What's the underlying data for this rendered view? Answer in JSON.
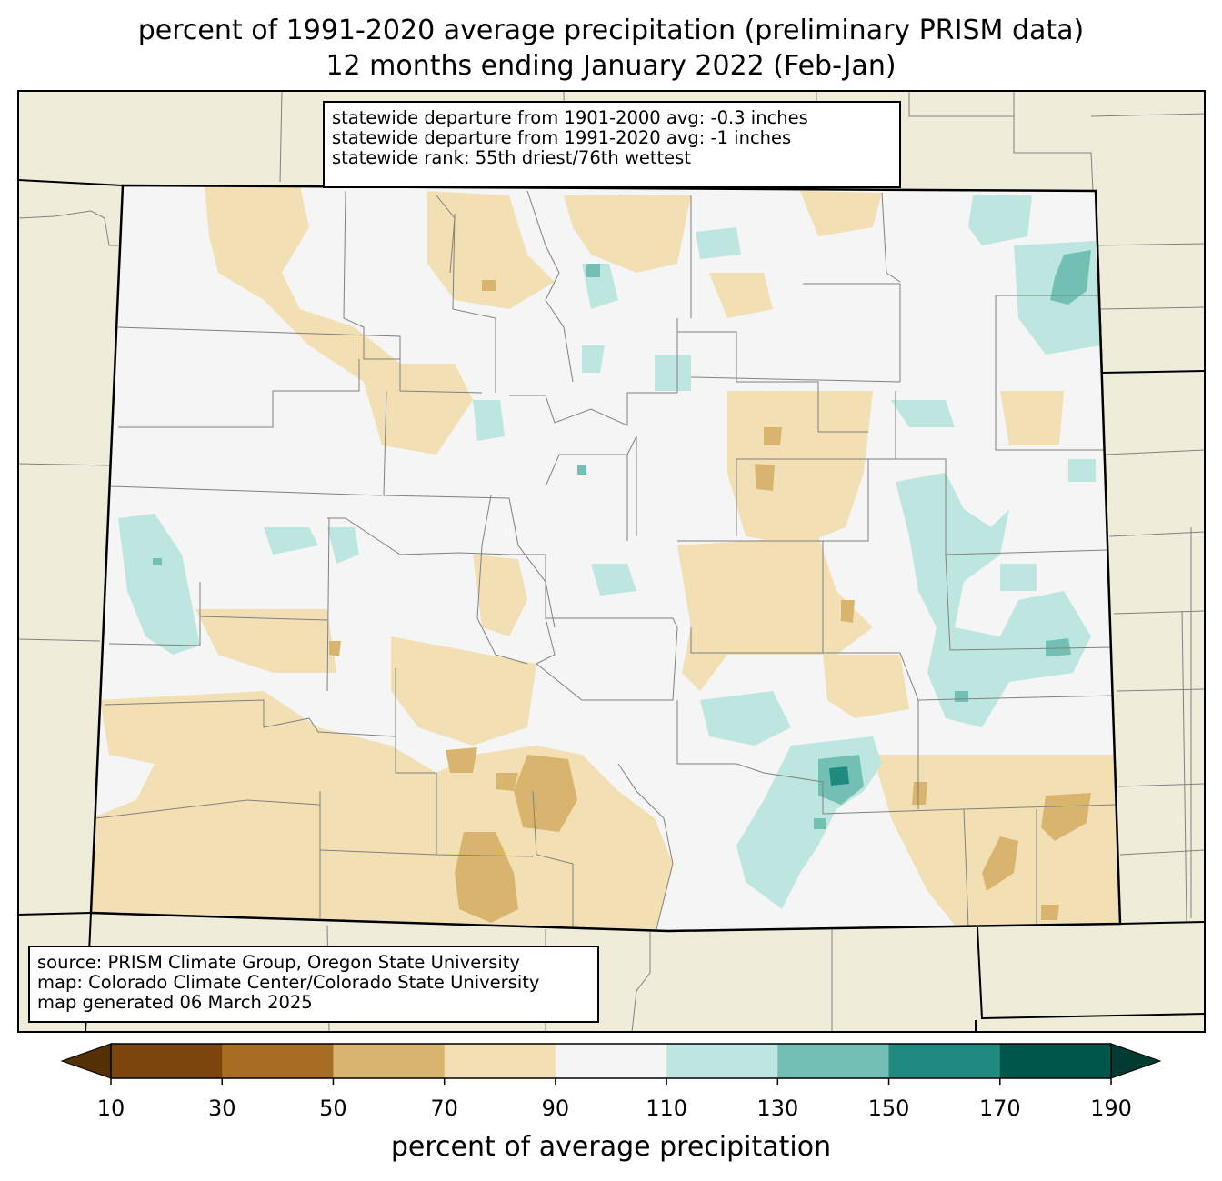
{
  "title": {
    "line1": "percent of 1991-2020 average precipitation (preliminary PRISM data)",
    "line2": "12 months ending January 2022 (Feb-Jan)"
  },
  "stats": {
    "line1": "statewide departure from 1901-2000 avg: -0.3 inches",
    "line2": "statewide departure from 1991-2020 avg: -1 inches",
    "line3": "statewide rank: 55th driest/76th wettest"
  },
  "source": {
    "line1": "source: PRISM Climate Group, Oregon State University",
    "line2": "map: Colorado Climate Center/Colorado State University",
    "line3": "map generated 06 March 2025"
  },
  "colorbar": {
    "label": "percent of average precipitation",
    "ticks": [
      "10",
      "30",
      "50",
      "70",
      "90",
      "110",
      "130",
      "150",
      "170",
      "190"
    ],
    "under_color": "#543005",
    "over_color": "#003c30",
    "bins": [
      {
        "range": "10-30",
        "color": "#7a460c"
      },
      {
        "range": "30-50",
        "color": "#a96d24"
      },
      {
        "range": "50-70",
        "color": "#d9b46e"
      },
      {
        "range": "70-90",
        "color": "#f2e0b4"
      },
      {
        "range": "90-110",
        "color": "#f4f5f4"
      },
      {
        "range": "110-130",
        "color": "#bde6e0"
      },
      {
        "range": "130-150",
        "color": "#72c0b3"
      },
      {
        "range": "150-170",
        "color": "#218a80"
      },
      {
        "range": "170-190",
        "color": "#00564b"
      }
    ]
  },
  "colors": {
    "background_land": "#efedda",
    "state_fill": "#f4f5f4",
    "county_line": "#808080",
    "state_border": "#000000"
  }
}
